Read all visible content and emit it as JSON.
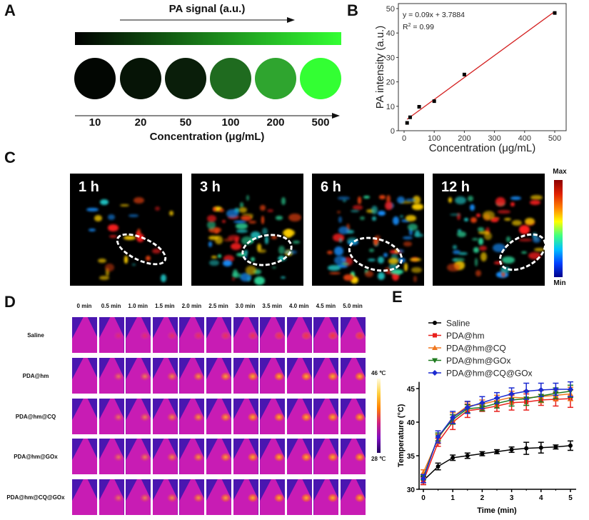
{
  "panel_labels": [
    "A",
    "B",
    "C",
    "D",
    "E"
  ],
  "panel_a": {
    "signal_label": "PA signal (a.u.)",
    "concentrations": [
      "10",
      "20",
      "50",
      "100",
      "200",
      "500"
    ],
    "circle_colors": [
      "#020602",
      "#061406",
      "#0a1e0a",
      "#1f6b1f",
      "#2fa52f",
      "#33ff33"
    ],
    "xlabel": "Concentration (μg/mL)",
    "gradient": [
      "#000000",
      "#33ff33"
    ]
  },
  "panel_c": {
    "timepoints": [
      "1 h",
      "3 h",
      "6 h",
      "12 h"
    ],
    "colorbar_max": "Max",
    "colorbar_min": "Min"
  },
  "panel_d": {
    "columns": [
      "0 min",
      "0.5 min",
      "1.0 min",
      "1.5 min",
      "2.0 min",
      "2.5 min",
      "3.0 min",
      "3.5 min",
      "4.0 min",
      "4.5 min",
      "5.0 min"
    ],
    "rows": [
      "Saline",
      "PDA@hm",
      "PDA@hm@CQ",
      "PDA@hm@GOx",
      "PDA@hm@CQ@GOx"
    ],
    "colorbar_max": "46 ℃",
    "colorbar_min": "28 ℃"
  },
  "chart_data": [
    {
      "panel": "B",
      "type": "scatter",
      "xlabel": "Concentration (μg/mL)",
      "ylabel": "PA intensity (a.u.)",
      "xlim": [
        0,
        550
      ],
      "ylim": [
        0,
        50
      ],
      "xticks": [
        0,
        100,
        200,
        300,
        400,
        500
      ],
      "yticks": [
        0,
        10,
        20,
        30,
        40,
        50
      ],
      "x": [
        10,
        20,
        50,
        100,
        200,
        500
      ],
      "y": [
        3.2,
        5.5,
        9.8,
        12.1,
        23.0,
        48.2
      ],
      "fit": {
        "slope": 0.09,
        "intercept": 3.7884,
        "color": "#d42020"
      },
      "annotations": [
        "y = 0.09x + 3.7884",
        "R",
        "2",
        " = 0.99"
      ]
    },
    {
      "panel": "E",
      "type": "line",
      "xlabel": "Time (min)",
      "ylabel": "Temperature (°C)",
      "xlim": [
        0,
        5
      ],
      "ylim": [
        30,
        46
      ],
      "xticks": [
        0,
        1,
        2,
        3,
        4,
        5
      ],
      "yticks": [
        30,
        35,
        40,
        45
      ],
      "legend_position": "top-left",
      "x": [
        0,
        0.5,
        1,
        1.5,
        2,
        2.5,
        3,
        3.5,
        4,
        4.5,
        5
      ],
      "series": [
        {
          "name": "Saline",
          "color": "#000000",
          "marker": "circle",
          "values": [
            31.3,
            33.4,
            34.7,
            35.0,
            35.3,
            35.6,
            35.9,
            36.1,
            36.2,
            36.3,
            36.5
          ],
          "errors": [
            0.6,
            0.5,
            0.4,
            0.4,
            0.3,
            0.3,
            0.4,
            0.9,
            0.8,
            0.3,
            0.7
          ]
        },
        {
          "name": "PDA@hm",
          "color": "#e8201c",
          "marker": "square",
          "values": [
            31.2,
            37.0,
            40.0,
            41.7,
            42.0,
            42.4,
            42.9,
            43.0,
            43.3,
            43.4,
            43.5
          ],
          "errors": [
            0.5,
            0.6,
            1.1,
            1.0,
            0.4,
            0.8,
            1.1,
            1.2,
            0.8,
            1.0,
            1.3
          ]
        },
        {
          "name": "PDA@hm@CQ",
          "color": "#f07820",
          "marker": "triangle-up",
          "values": [
            32.5,
            37.5,
            40.8,
            42.4,
            42.7,
            43.2,
            43.7,
            43.6,
            43.8,
            44.0,
            44.2
          ],
          "errors": [
            0.4,
            0.7,
            0.6,
            0.6,
            0.6,
            0.8,
            0.9,
            1.1,
            0.9,
            0.8,
            1.0
          ]
        },
        {
          "name": "PDA@hm@GOx",
          "color": "#1e7a1e",
          "marker": "triangle-down",
          "values": [
            31.8,
            37.8,
            40.4,
            42.0,
            42.2,
            42.8,
            43.3,
            43.5,
            43.9,
            44.3,
            44.6
          ],
          "errors": [
            0.4,
            0.6,
            0.7,
            0.6,
            0.5,
            0.7,
            0.9,
            1.0,
            0.9,
            0.8,
            0.9
          ]
        },
        {
          "name": "PDA@hm@CQ@GOx",
          "color": "#1c2ad0",
          "marker": "diamond",
          "values": [
            31.6,
            37.8,
            40.7,
            42.2,
            42.9,
            43.6,
            44.2,
            44.6,
            44.8,
            44.9,
            44.9
          ],
          "errors": [
            0.6,
            0.9,
            0.9,
            0.9,
            0.9,
            0.8,
            0.9,
            1.2,
            1.0,
            0.9,
            1.1
          ]
        }
      ]
    }
  ]
}
